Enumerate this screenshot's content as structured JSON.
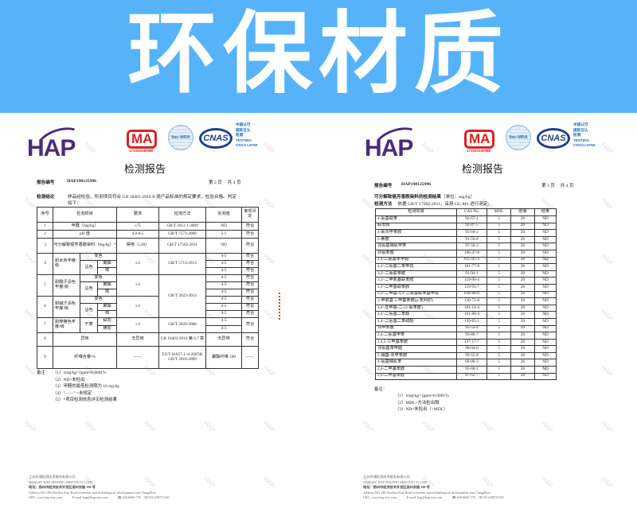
{
  "banner": {
    "title": "环保材质"
  },
  "logos": {
    "hap": "HAP",
    "cma": "MA",
    "cma_number": "171020340088",
    "ilac": "ilac-MRA",
    "cnas": "CNAS",
    "cnas_lines": [
      "中国认可",
      "国际互认",
      "检测",
      "TESTING",
      "CNAS L6760"
    ]
  },
  "report": {
    "title": "检测报告",
    "number_label": "报告编号",
    "number": "HAP190125996",
    "watermark": "HAP"
  },
  "left": {
    "page": "第 2 页　 共 4 页",
    "conclusion_label": "检测结论",
    "conclusion": "样品经检验，所测项目符合 GB 18401-2010 B 类产品标准的规定要求，检验合格。判定",
    "conclusion2": "如下：",
    "header": [
      "序号",
      "检测项目",
      "要求",
      "检测方法",
      "实测值",
      "单项评定"
    ],
    "r1": [
      "1",
      "甲醛（mg/kg）",
      "≤75",
      "GB/T 2912.1-2009",
      "ND",
      "符合"
    ],
    "r2": [
      "2",
      "pH 值",
      "4.0-8.5",
      "GB/T 7573-2009",
      "5.1",
      "符合"
    ],
    "r3": [
      "3",
      "可分解致癌芳香胺染料（mg/kg）*",
      "禁用（≤20）",
      "GB/T 17592-2011",
      "ND",
      "符合"
    ],
    "sub": {
      "change": "变色",
      "stain": "沾色",
      "polyester": "聚酯",
      "cotton": "棉",
      "dry": "干摩",
      "long": "纵向",
      "cross": "横向"
    },
    "r4": {
      "no": "4",
      "name": "耐水色牢度/级",
      "req": "≥3",
      "method": "GB/T 5713-2013",
      "vals": [
        "4-5",
        "4-5",
        "4-5"
      ],
      "evals": [
        "符合",
        "符合",
        "符合"
      ]
    },
    "r5": {
      "no": "5",
      "name": "耐酸汗渍色牢度/级",
      "req": "≥3",
      "method": "GB/T 3922-2013",
      "vals": [
        "4-5",
        "4-5",
        "4-5"
      ],
      "evals": [
        "符合",
        "符合",
        "符合"
      ]
    },
    "r6": {
      "no": "6",
      "name": "耐碱汗渍色牢度/级",
      "req": "≥3",
      "vals": [
        "4-5",
        "4-5",
        "4-5"
      ],
      "evals": [
        "符合",
        "符合",
        "符合"
      ]
    },
    "r7": {
      "no": "7",
      "name": "耐摩擦色牢度/级",
      "req": "≥3",
      "method": "GB/T 3920-2008",
      "vals": [
        "4-5",
        "4-5"
      ],
      "eval": "符合"
    },
    "r8": [
      "8",
      "异味",
      "无异味",
      "GB 18401-2010 第 6.7 章",
      "无异味",
      "符合"
    ],
    "r9": [
      "9",
      "纤维含量/%",
      "——",
      "FZ/T 01057.1~4-2007& GB/T 2910-2009",
      "聚酯纤维 100",
      "——"
    ],
    "notes_label": "备注：",
    "notes": [
      "（1）1mg/kg=1ppm=0.0001%",
      "（2）ND=未检出",
      "（3）甲醛的最低检测限为 16 mg/kg",
      "（4）\"——\" =未规定",
      "（5）*项目检测信息详见检测结果"
    ]
  },
  "right": {
    "page": "第 3 页　 共 4 页",
    "heading": "可分解致癌芳香胺染料的检测结果",
    "unit": "（单位：mg/kg）",
    "method_label": "检测方法",
    "method": "依据 GB/T 17592-2011，采用 GC-MS 进行测定。",
    "header": [
      "检测项目",
      "CAS No.",
      "MDL",
      "限量",
      "结果"
    ],
    "rows": [
      [
        "4-氨基联苯",
        "92-67-1",
        "5",
        "20",
        "ND"
      ],
      [
        "联苯胺",
        "92-87-5",
        "5",
        "20",
        "ND"
      ],
      [
        "4-氯邻甲苯胺",
        "95-69-2",
        "5",
        "20",
        "ND"
      ],
      [
        "2-萘胺",
        "91-59-8",
        "5",
        "20",
        "ND"
      ],
      [
        "邻氨基偶氮甲苯",
        "97-56-3",
        "5",
        "20",
        "ND"
      ],
      [
        "对氯苯胺",
        "106-47-8",
        "5",
        "20",
        "ND"
      ],
      [
        "2,4-二氨基苯甲醚",
        "615-05-4",
        "5",
        "20",
        "ND"
      ],
      [
        "4,4'-二氨基二苯甲烷",
        "101-77-9",
        "5",
        "20",
        "ND"
      ],
      [
        "3,3'-二氯联苯胺",
        "91-94-1",
        "5",
        "20",
        "ND"
      ],
      [
        "3,3'-二甲氧基联苯胺",
        "119-90-4",
        "5",
        "20",
        "ND"
      ],
      [
        "3,3'-二甲基联苯胺",
        "119-93-7",
        "5",
        "20",
        "ND"
      ],
      [
        "3,3'-二甲基-4,4'-二氨基联苯基甲烷",
        "838-88-0",
        "5",
        "20",
        "ND"
      ],
      [
        "2-甲氧基-5-甲基苯胺(p-克利酊)",
        "120-71-8",
        "5",
        "20",
        "ND"
      ],
      [
        "4,4'-亚甲基-二-(2-氯苯胺)",
        "101-14-4",
        "5",
        "20",
        "ND"
      ],
      [
        "4,4'-二氨基二苯醚",
        "101-80-4",
        "5",
        "20",
        "ND"
      ],
      [
        "4,4'-二氨基二苯硫醚",
        "139-65-1",
        "5",
        "20",
        "ND"
      ],
      [
        "邻甲苯胺",
        "95-53-4",
        "5",
        "20",
        "ND"
      ],
      [
        "2,4-二氨基甲苯",
        "95-80-7",
        "5",
        "20",
        "ND"
      ],
      [
        "2,4,5-三甲基苯胺",
        "137-17-7",
        "5",
        "20",
        "ND"
      ],
      [
        "邻氨基苯甲醚",
        "90-04-0",
        "5",
        "20",
        "ND"
      ],
      [
        "5-硝基-邻甲苯胺",
        "99-55-8",
        "5",
        "20",
        "ND"
      ],
      [
        "4-氨基偶氮苯",
        "60-09-3",
        "5",
        "20",
        "ND"
      ],
      [
        "2,4-二甲基苯胺",
        "95-68-1",
        "5",
        "20",
        "ND"
      ],
      [
        "2,6-二甲基苯胺",
        "87-62-7",
        "5",
        "20",
        "ND"
      ]
    ],
    "notes_label": "备注：",
    "notes": [
      "（1）1mg/kg=1ppm=0.0001%",
      "（2）MDL=方法检出限",
      "（3）ND=未检出（<MDL）"
    ]
  },
  "footer": {
    "company_cn": "江苏环通检测技术服务有限公司",
    "company_en": "JIANGSU HAP TESTING SERVICE CO.,LTD",
    "address_cn": "地址：扬州市经济技术开发区吴州东路 198 号",
    "address_en": "Address:NO.198 Wuzhou East Road,economic and technological development zone,YangZhou",
    "url": "URL: www.hap-test.com",
    "email": "E-mail: hap@hap-test.com",
    "phone": "☎ 400-6600-776",
    "fax": "℻ 0514-89711561"
  }
}
